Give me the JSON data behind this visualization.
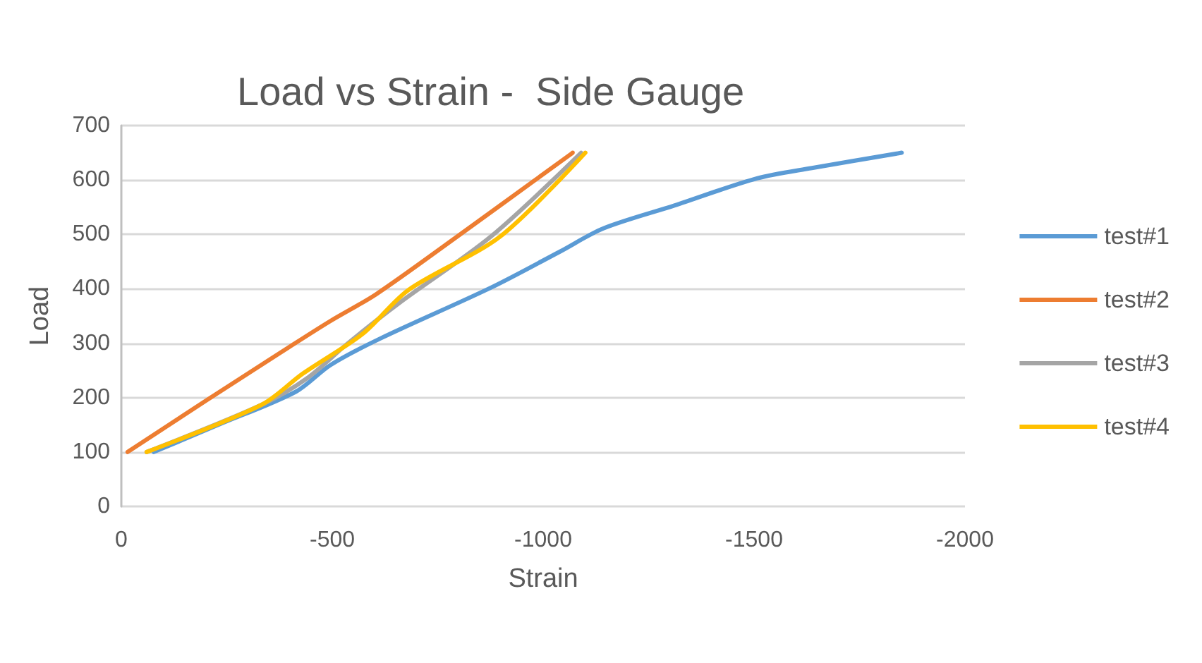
{
  "chart_data": {
    "type": "line",
    "title": "Load vs Strain -  Side Gauge",
    "xlabel": "Strain",
    "ylabel": "Load",
    "xlim": [
      0,
      -2000
    ],
    "xticks": [
      0,
      -500,
      -1000,
      -1500,
      -2000
    ],
    "ylim": [
      0,
      700
    ],
    "yticks": [
      0,
      100,
      200,
      300,
      400,
      500,
      600,
      700
    ],
    "grid": "y",
    "legend": "right",
    "marker": "none",
    "line_style": "solid",
    "series": [
      {
        "name": "test#1",
        "color": "#5b9bd5",
        "x": [
          -77,
          -230,
          -414,
          -496,
          -615,
          -876,
          -1039,
          -1143,
          -1311,
          -1507,
          -1637,
          -1850
        ],
        "values": [
          100,
          150,
          211,
          260,
          309,
          402,
          468,
          511,
          553,
          603,
          622,
          650
        ]
      },
      {
        "name": "test#2",
        "color": "#ed7d31",
        "x": [
          -15,
          -202,
          -398,
          -496,
          -604,
          -789,
          -1070
        ],
        "values": [
          100,
          195,
          293,
          341,
          390,
          492,
          650
        ]
      },
      {
        "name": "test#3",
        "color": "#a5a5a5",
        "x": [
          -60,
          -333,
          -441,
          -539,
          -659,
          -876,
          -1090
        ],
        "values": [
          100,
          187,
          236,
          301,
          374,
          496,
          650
        ]
      },
      {
        "name": "test#4",
        "color": "#ffc000",
        "x": [
          -60,
          -333,
          -430,
          -572,
          -681,
          -898,
          -1100
        ],
        "values": [
          100,
          187,
          244,
          317,
          398,
          496,
          650
        ]
      }
    ]
  }
}
